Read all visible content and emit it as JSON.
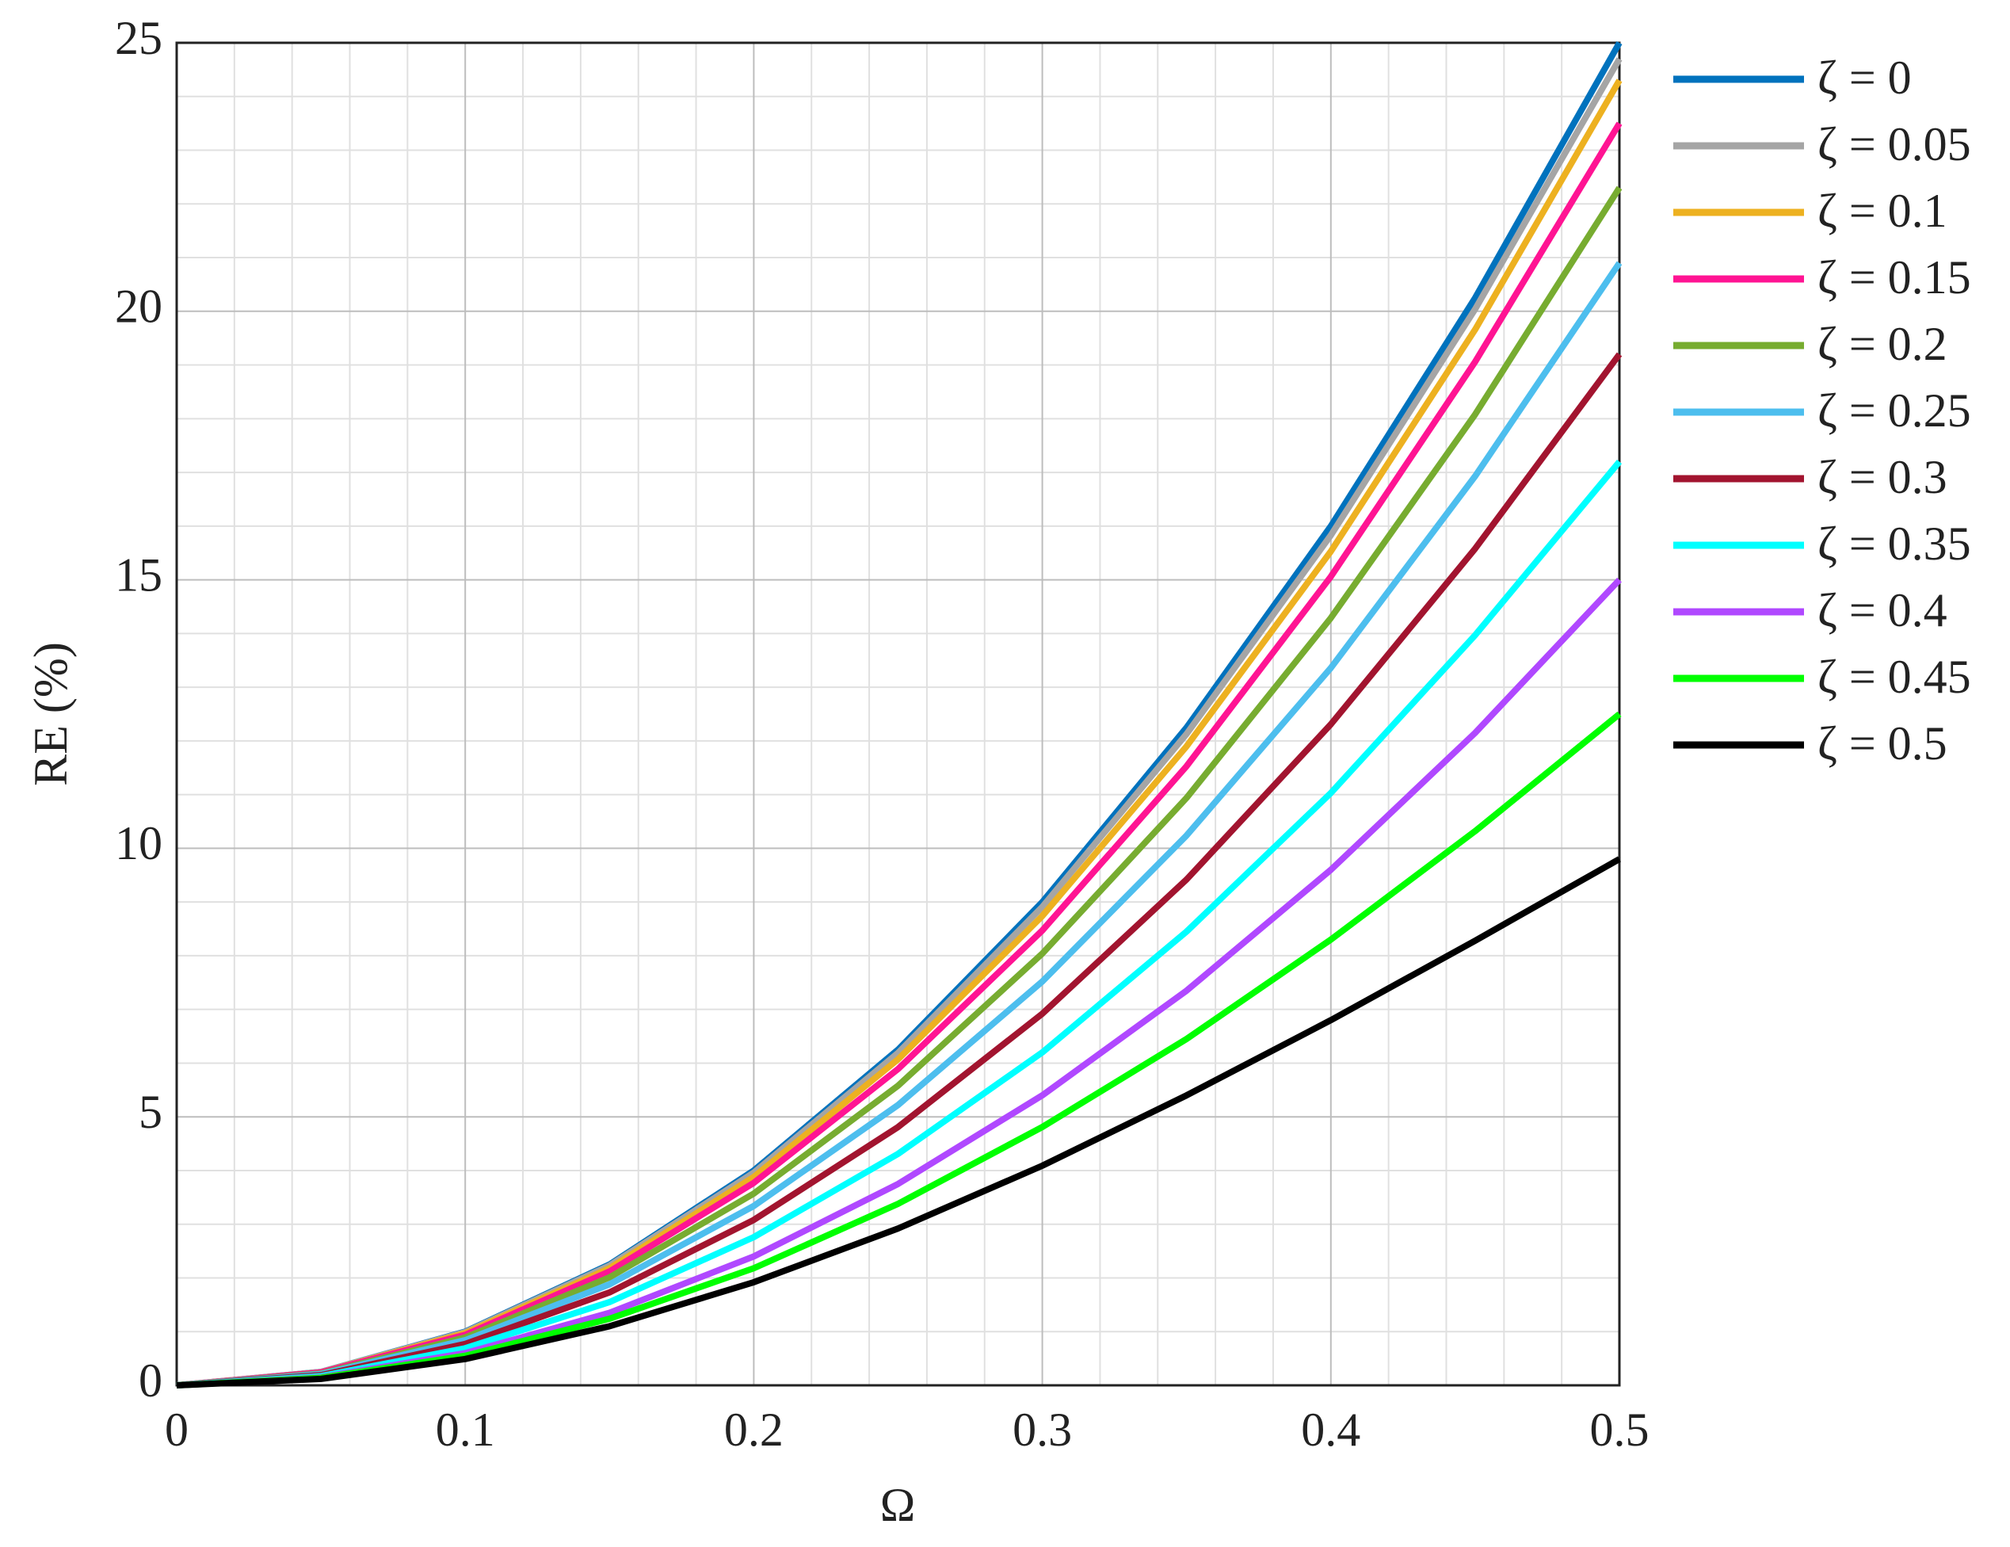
{
  "chart_data": {
    "type": "line",
    "xlabel": "Ω",
    "ylabel": "RE (%)",
    "x": [
      0,
      0.05,
      0.1,
      0.15,
      0.2,
      0.25,
      0.3,
      0.35,
      0.4,
      0.45,
      0.5
    ],
    "xlim": [
      0,
      0.5
    ],
    "ylim": [
      0,
      25
    ],
    "xticks": [
      0,
      0.1,
      0.2,
      0.3,
      0.4,
      0.5
    ],
    "yticks": [
      0,
      5,
      10,
      15,
      20,
      25
    ],
    "grid": true,
    "minor_grid": true,
    "legend": "outside-right",
    "series": [
      {
        "name": "ζ = 0",
        "color": "#0072bd",
        "values": [
          0,
          0.25,
          1,
          2.25,
          4,
          6.25,
          9,
          12.25,
          16,
          20.25,
          25
        ]
      },
      {
        "name": "ζ = 0.05",
        "color": "#a5a5a5",
        "values": [
          0,
          0.25,
          0.99,
          2.23,
          3.96,
          6.19,
          8.91,
          12.13,
          15.83,
          20.04,
          24.7
        ]
      },
      {
        "name": "ζ = 0.1",
        "color": "#edb120",
        "values": [
          0,
          0.24,
          0.97,
          2.18,
          3.88,
          6.07,
          8.74,
          11.9,
          15.53,
          19.66,
          24.3
        ]
      },
      {
        "name": "ζ = 0.15",
        "color": "#ff1493",
        "values": [
          0,
          0.24,
          0.94,
          2.12,
          3.77,
          5.89,
          8.47,
          11.53,
          15.06,
          19.06,
          23.5
        ]
      },
      {
        "name": "ζ = 0.2",
        "color": "#77ac30",
        "values": [
          0,
          0.22,
          0.89,
          2.01,
          3.57,
          5.58,
          8.04,
          10.94,
          14.29,
          18.08,
          22.3
        ]
      },
      {
        "name": "ζ = 0.25",
        "color": "#4dbeee",
        "values": [
          0,
          0.21,
          0.84,
          1.88,
          3.34,
          5.22,
          7.52,
          10.24,
          13.36,
          16.93,
          20.9
        ]
      },
      {
        "name": "ζ = 0.3",
        "color": "#a2142f",
        "values": [
          0,
          0.19,
          0.77,
          1.73,
          3.08,
          4.81,
          6.92,
          9.42,
          12.31,
          15.58,
          19.2
        ]
      },
      {
        "name": "ζ = 0.35",
        "color": "#00ffff",
        "values": [
          0,
          0.17,
          0.69,
          1.55,
          2.76,
          4.31,
          6.2,
          8.45,
          11.03,
          13.97,
          17.2
        ]
      },
      {
        "name": "ζ = 0.4",
        "color": "#b048ff",
        "values": [
          0,
          0.15,
          0.6,
          1.35,
          2.4,
          3.75,
          5.4,
          7.35,
          9.6,
          12.15,
          15.0
        ]
      },
      {
        "name": "ζ = 0.45",
        "color": "#00ff00",
        "values": [
          0,
          0.14,
          0.55,
          1.24,
          2.18,
          3.38,
          4.81,
          6.45,
          8.3,
          10.32,
          12.5
        ]
      },
      {
        "name": "ζ = 0.5",
        "color": "#000000",
        "values": [
          0,
          0.12,
          0.49,
          1.1,
          1.92,
          2.92,
          4.09,
          5.4,
          6.8,
          8.28,
          9.8
        ]
      }
    ]
  }
}
